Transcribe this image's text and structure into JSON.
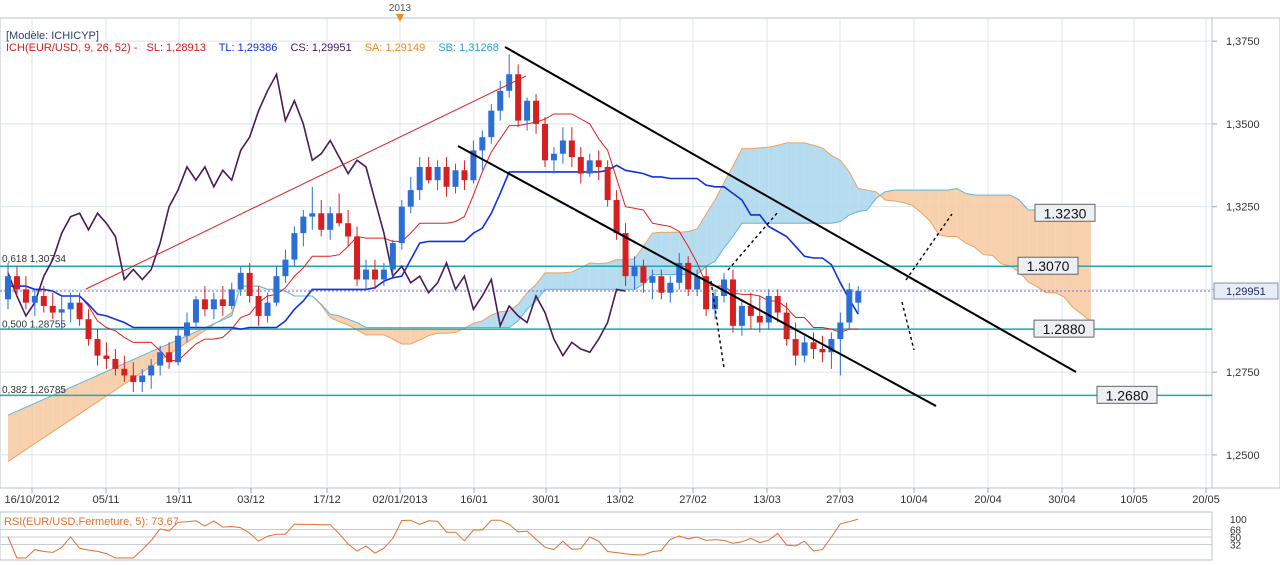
{
  "header": {
    "year_marker": "2013",
    "model_label": "[Modèle: ICHICYP]",
    "ind_name": "ICH(EUR/USD, 9, 26, 52) -",
    "sl_label": "SL: 1,28913",
    "tl_label": "TL: 1,29386",
    "cs_label": "CS: 1,29951",
    "sa_label": "SA: 1,29149",
    "sb_label": "SB: 1,31268"
  },
  "colors": {
    "candle_up": "#2b6ed6",
    "candle_down": "#d42020",
    "tenkan": "#e02020",
    "kijun": "#1030e0",
    "chikou": "#4a1a5a",
    "cloud_bull": "#a9d6ec",
    "cloud_bear": "#f6c9a0",
    "level_line": "#1fa8b4",
    "rsi": "#e07030",
    "current_price_line": "#6a6ad8",
    "grid": "#dde4ee"
  },
  "rsi": {
    "label": "RSI(EUR/USD,Fermeture, 5): 73,67",
    "axis_top": "100",
    "axis_labels": [
      "68",
      "50",
      "32"
    ]
  },
  "chart_data": {
    "type": "candlestick",
    "title": "EUR/USD",
    "ylim": [
      1.24,
      1.382
    ],
    "y_ticks": [
      "1,3750",
      "1,3500",
      "1,3250",
      "1,3000",
      "1,2750",
      "1,2500"
    ],
    "y_tick_values": [
      1.375,
      1.35,
      1.325,
      1.3,
      1.275,
      1.25
    ],
    "x_tick_labels": [
      "16/10/2012",
      "05/11",
      "19/11",
      "03/12",
      "17/12",
      "02/01/2013",
      "16/01",
      "30/01",
      "13/02",
      "27/02",
      "13/03",
      "27/03",
      "10/04",
      "20/04",
      "30/04",
      "10/05",
      "20/05"
    ],
    "current_price": 1.29951,
    "current_price_label": "1,29951",
    "levels": [
      {
        "label": "1.3230",
        "value": 1.323
      },
      {
        "label": "1.3070",
        "value": 1.307
      },
      {
        "label": "1.2880",
        "value": 1.288
      },
      {
        "label": "1.2680",
        "value": 1.268
      }
    ],
    "fibo_labels": [
      {
        "text": "0,618 1,30734",
        "value": 1.30734
      },
      {
        "text": "0,500 1,28755",
        "value": 1.28755
      },
      {
        "text": "0,382 1,26785",
        "value": 1.26785
      }
    ],
    "candles": [
      {
        "o": 1.297,
        "h": 1.308,
        "l": 1.294,
        "c": 1.304
      },
      {
        "o": 1.304,
        "h": 1.307,
        "l": 1.298,
        "c": 1.3
      },
      {
        "o": 1.3,
        "h": 1.304,
        "l": 1.294,
        "c": 1.296
      },
      {
        "o": 1.296,
        "h": 1.3,
        "l": 1.292,
        "c": 1.298
      },
      {
        "o": 1.298,
        "h": 1.301,
        "l": 1.293,
        "c": 1.295
      },
      {
        "o": 1.295,
        "h": 1.299,
        "l": 1.291,
        "c": 1.293
      },
      {
        "o": 1.293,
        "h": 1.298,
        "l": 1.288,
        "c": 1.294
      },
      {
        "o": 1.294,
        "h": 1.299,
        "l": 1.29,
        "c": 1.296
      },
      {
        "o": 1.296,
        "h": 1.299,
        "l": 1.289,
        "c": 1.291
      },
      {
        "o": 1.291,
        "h": 1.294,
        "l": 1.283,
        "c": 1.285
      },
      {
        "o": 1.285,
        "h": 1.288,
        "l": 1.277,
        "c": 1.28
      },
      {
        "o": 1.28,
        "h": 1.284,
        "l": 1.276,
        "c": 1.279
      },
      {
        "o": 1.279,
        "h": 1.282,
        "l": 1.274,
        "c": 1.276
      },
      {
        "o": 1.276,
        "h": 1.28,
        "l": 1.272,
        "c": 1.274
      },
      {
        "o": 1.274,
        "h": 1.278,
        "l": 1.269,
        "c": 1.272
      },
      {
        "o": 1.272,
        "h": 1.276,
        "l": 1.269,
        "c": 1.274
      },
      {
        "o": 1.274,
        "h": 1.279,
        "l": 1.27,
        "c": 1.277
      },
      {
        "o": 1.277,
        "h": 1.283,
        "l": 1.274,
        "c": 1.281
      },
      {
        "o": 1.281,
        "h": 1.284,
        "l": 1.276,
        "c": 1.278
      },
      {
        "o": 1.278,
        "h": 1.288,
        "l": 1.277,
        "c": 1.286
      },
      {
        "o": 1.286,
        "h": 1.293,
        "l": 1.284,
        "c": 1.29
      },
      {
        "o": 1.29,
        "h": 1.298,
        "l": 1.288,
        "c": 1.297
      },
      {
        "o": 1.297,
        "h": 1.301,
        "l": 1.292,
        "c": 1.294
      },
      {
        "o": 1.294,
        "h": 1.299,
        "l": 1.291,
        "c": 1.297
      },
      {
        "o": 1.297,
        "h": 1.301,
        "l": 1.292,
        "c": 1.295
      },
      {
        "o": 1.295,
        "h": 1.302,
        "l": 1.294,
        "c": 1.3
      },
      {
        "o": 1.3,
        "h": 1.307,
        "l": 1.298,
        "c": 1.305
      },
      {
        "o": 1.305,
        "h": 1.308,
        "l": 1.296,
        "c": 1.298
      },
      {
        "o": 1.298,
        "h": 1.301,
        "l": 1.289,
        "c": 1.292
      },
      {
        "o": 1.292,
        "h": 1.299,
        "l": 1.29,
        "c": 1.296
      },
      {
        "o": 1.296,
        "h": 1.307,
        "l": 1.295,
        "c": 1.304
      },
      {
        "o": 1.304,
        "h": 1.312,
        "l": 1.302,
        "c": 1.309
      },
      {
        "o": 1.309,
        "h": 1.319,
        "l": 1.307,
        "c": 1.317
      },
      {
        "o": 1.317,
        "h": 1.324,
        "l": 1.313,
        "c": 1.322
      },
      {
        "o": 1.322,
        "h": 1.331,
        "l": 1.318,
        "c": 1.323
      },
      {
        "o": 1.323,
        "h": 1.327,
        "l": 1.316,
        "c": 1.318
      },
      {
        "o": 1.318,
        "h": 1.325,
        "l": 1.315,
        "c": 1.323
      },
      {
        "o": 1.323,
        "h": 1.329,
        "l": 1.319,
        "c": 1.32
      },
      {
        "o": 1.32,
        "h": 1.324,
        "l": 1.313,
        "c": 1.316
      },
      {
        "o": 1.316,
        "h": 1.319,
        "l": 1.301,
        "c": 1.303
      },
      {
        "o": 1.303,
        "h": 1.309,
        "l": 1.3,
        "c": 1.306
      },
      {
        "o": 1.306,
        "h": 1.309,
        "l": 1.3,
        "c": 1.303
      },
      {
        "o": 1.303,
        "h": 1.308,
        "l": 1.301,
        "c": 1.306
      },
      {
        "o": 1.306,
        "h": 1.315,
        "l": 1.304,
        "c": 1.314
      },
      {
        "o": 1.314,
        "h": 1.327,
        "l": 1.312,
        "c": 1.325
      },
      {
        "o": 1.325,
        "h": 1.334,
        "l": 1.323,
        "c": 1.33
      },
      {
        "o": 1.33,
        "h": 1.34,
        "l": 1.327,
        "c": 1.337
      },
      {
        "o": 1.337,
        "h": 1.34,
        "l": 1.332,
        "c": 1.333
      },
      {
        "o": 1.333,
        "h": 1.339,
        "l": 1.33,
        "c": 1.337
      },
      {
        "o": 1.337,
        "h": 1.34,
        "l": 1.328,
        "c": 1.331
      },
      {
        "o": 1.331,
        "h": 1.338,
        "l": 1.329,
        "c": 1.336
      },
      {
        "o": 1.336,
        "h": 1.339,
        "l": 1.33,
        "c": 1.333
      },
      {
        "o": 1.333,
        "h": 1.345,
        "l": 1.332,
        "c": 1.342
      },
      {
        "o": 1.342,
        "h": 1.348,
        "l": 1.336,
        "c": 1.346
      },
      {
        "o": 1.346,
        "h": 1.356,
        "l": 1.344,
        "c": 1.354
      },
      {
        "o": 1.354,
        "h": 1.363,
        "l": 1.351,
        "c": 1.36
      },
      {
        "o": 1.36,
        "h": 1.371,
        "l": 1.358,
        "c": 1.365
      },
      {
        "o": 1.365,
        "h": 1.368,
        "l": 1.349,
        "c": 1.351
      },
      {
        "o": 1.351,
        "h": 1.358,
        "l": 1.348,
        "c": 1.357
      },
      {
        "o": 1.357,
        "h": 1.359,
        "l": 1.347,
        "c": 1.35
      },
      {
        "o": 1.35,
        "h": 1.352,
        "l": 1.337,
        "c": 1.339
      },
      {
        "o": 1.339,
        "h": 1.343,
        "l": 1.335,
        "c": 1.341
      },
      {
        "o": 1.341,
        "h": 1.349,
        "l": 1.338,
        "c": 1.345
      },
      {
        "o": 1.345,
        "h": 1.349,
        "l": 1.337,
        "c": 1.34
      },
      {
        "o": 1.34,
        "h": 1.343,
        "l": 1.332,
        "c": 1.335
      },
      {
        "o": 1.335,
        "h": 1.341,
        "l": 1.334,
        "c": 1.339
      },
      {
        "o": 1.339,
        "h": 1.342,
        "l": 1.333,
        "c": 1.337
      },
      {
        "o": 1.337,
        "h": 1.339,
        "l": 1.325,
        "c": 1.327
      },
      {
        "o": 1.327,
        "h": 1.33,
        "l": 1.315,
        "c": 1.317
      },
      {
        "o": 1.317,
        "h": 1.32,
        "l": 1.301,
        "c": 1.304
      },
      {
        "o": 1.304,
        "h": 1.31,
        "l": 1.3,
        "c": 1.307
      },
      {
        "o": 1.307,
        "h": 1.309,
        "l": 1.299,
        "c": 1.302
      },
      {
        "o": 1.302,
        "h": 1.306,
        "l": 1.297,
        "c": 1.304
      },
      {
        "o": 1.304,
        "h": 1.306,
        "l": 1.297,
        "c": 1.299
      },
      {
        "o": 1.299,
        "h": 1.304,
        "l": 1.296,
        "c": 1.302
      },
      {
        "o": 1.302,
        "h": 1.311,
        "l": 1.3,
        "c": 1.308
      },
      {
        "o": 1.308,
        "h": 1.31,
        "l": 1.298,
        "c": 1.3
      },
      {
        "o": 1.3,
        "h": 1.306,
        "l": 1.298,
        "c": 1.304
      },
      {
        "o": 1.304,
        "h": 1.307,
        "l": 1.292,
        "c": 1.294
      },
      {
        "o": 1.294,
        "h": 1.3,
        "l": 1.291,
        "c": 1.298
      },
      {
        "o": 1.298,
        "h": 1.305,
        "l": 1.296,
        "c": 1.303
      },
      {
        "o": 1.303,
        "h": 1.306,
        "l": 1.287,
        "c": 1.289
      },
      {
        "o": 1.289,
        "h": 1.297,
        "l": 1.286,
        "c": 1.295
      },
      {
        "o": 1.295,
        "h": 1.299,
        "l": 1.288,
        "c": 1.292
      },
      {
        "o": 1.292,
        "h": 1.298,
        "l": 1.287,
        "c": 1.29
      },
      {
        "o": 1.29,
        "h": 1.3,
        "l": 1.288,
        "c": 1.298
      },
      {
        "o": 1.298,
        "h": 1.3,
        "l": 1.29,
        "c": 1.293
      },
      {
        "o": 1.293,
        "h": 1.296,
        "l": 1.283,
        "c": 1.285
      },
      {
        "o": 1.285,
        "h": 1.29,
        "l": 1.277,
        "c": 1.28
      },
      {
        "o": 1.28,
        "h": 1.286,
        "l": 1.278,
        "c": 1.284
      },
      {
        "o": 1.284,
        "h": 1.287,
        "l": 1.279,
        "c": 1.282
      },
      {
        "o": 1.282,
        "h": 1.286,
        "l": 1.278,
        "c": 1.281
      },
      {
        "o": 1.281,
        "h": 1.287,
        "l": 1.276,
        "c": 1.285
      },
      {
        "o": 1.285,
        "h": 1.293,
        "l": 1.274,
        "c": 1.29
      },
      {
        "o": 1.29,
        "h": 1.302,
        "l": 1.288,
        "c": 1.3
      },
      {
        "o": 1.296,
        "h": 1.301,
        "l": 1.293,
        "c": 1.2995
      }
    ]
  }
}
